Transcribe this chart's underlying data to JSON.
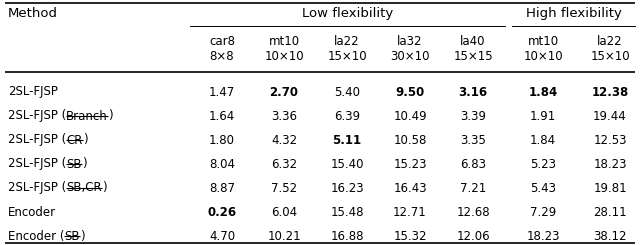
{
  "col_headers_line1": [
    "car8",
    "mt10",
    "la22",
    "la32",
    "la40",
    "mt10",
    "la22"
  ],
  "col_headers_line2": [
    "8×8",
    "10×10",
    "15×10",
    "30×10",
    "15×15",
    "10×10",
    "15×10"
  ],
  "rows": [
    {
      "method_parts": [
        {
          "text": "2SL-FJSP",
          "strike": false
        }
      ],
      "values": [
        "1.47",
        "2.70",
        "5.40",
        "9.50",
        "3.16",
        "1.84",
        "12.38"
      ],
      "bold": [
        false,
        true,
        false,
        true,
        true,
        true,
        true
      ]
    },
    {
      "method_parts": [
        {
          "text": "2SL-FJSP (",
          "strike": false
        },
        {
          "text": "Branch",
          "strike": true
        },
        {
          "text": ")",
          "strike": false
        }
      ],
      "values": [
        "1.64",
        "3.36",
        "6.39",
        "10.49",
        "3.39",
        "1.91",
        "19.44"
      ],
      "bold": [
        false,
        false,
        false,
        false,
        false,
        false,
        false
      ]
    },
    {
      "method_parts": [
        {
          "text": "2SL-FJSP (",
          "strike": false
        },
        {
          "text": "CR",
          "strike": true
        },
        {
          "text": ")",
          "strike": false
        }
      ],
      "values": [
        "1.80",
        "4.32",
        "5.11",
        "10.58",
        "3.35",
        "1.84",
        "12.53"
      ],
      "bold": [
        false,
        false,
        true,
        false,
        false,
        false,
        false
      ]
    },
    {
      "method_parts": [
        {
          "text": "2SL-FJSP (",
          "strike": false
        },
        {
          "text": "SB",
          "strike": true
        },
        {
          "text": ")",
          "strike": false
        }
      ],
      "values": [
        "8.04",
        "6.32",
        "15.40",
        "15.23",
        "6.83",
        "5.23",
        "18.23"
      ],
      "bold": [
        false,
        false,
        false,
        false,
        false,
        false,
        false
      ]
    },
    {
      "method_parts": [
        {
          "text": "2SL-FJSP (",
          "strike": false
        },
        {
          "text": "SB,CR",
          "strike": true
        },
        {
          "text": ")",
          "strike": false
        }
      ],
      "values": [
        "8.87",
        "7.52",
        "16.23",
        "16.43",
        "7.21",
        "5.43",
        "19.81"
      ],
      "bold": [
        false,
        false,
        false,
        false,
        false,
        false,
        false
      ]
    },
    {
      "method_parts": [
        {
          "text": "Encoder",
          "strike": false
        }
      ],
      "values": [
        "0.26",
        "6.04",
        "15.48",
        "12.71",
        "12.68",
        "7.29",
        "28.11"
      ],
      "bold": [
        true,
        false,
        false,
        false,
        false,
        false,
        false
      ]
    },
    {
      "method_parts": [
        {
          "text": "Encoder (",
          "strike": false
        },
        {
          "text": "SB",
          "strike": true
        },
        {
          "text": ")",
          "strike": false
        }
      ],
      "values": [
        "4.70",
        "10.21",
        "16.88",
        "15.32",
        "12.06",
        "18.23",
        "38.12"
      ],
      "bold": [
        false,
        false,
        false,
        false,
        false,
        false,
        false
      ]
    }
  ],
  "background_color": "#ffffff",
  "text_color": "#000000",
  "font_size": 8.5,
  "header_font_size": 9.5
}
